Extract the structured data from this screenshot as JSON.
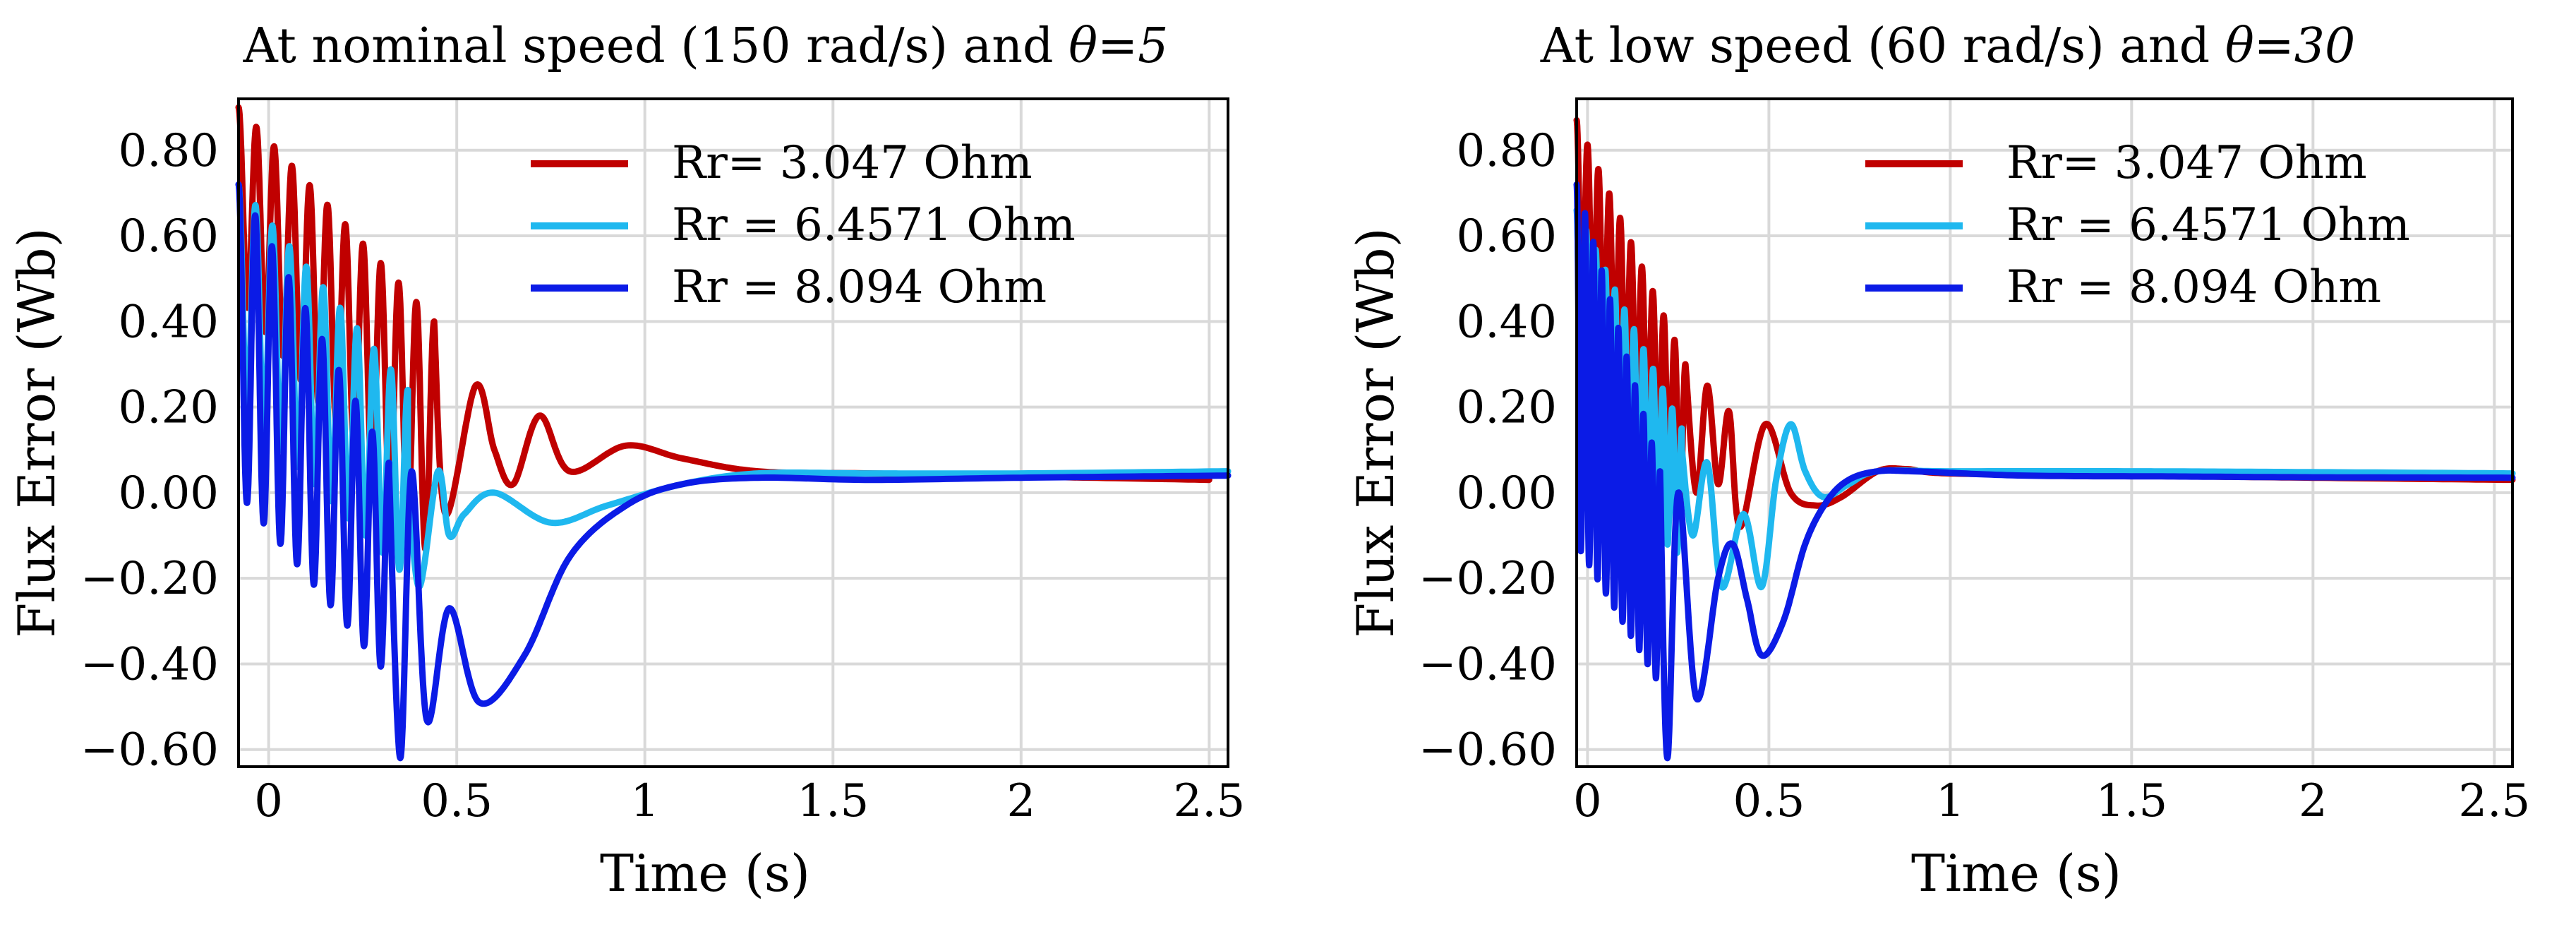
{
  "chart_data": [
    {
      "type": "line",
      "title": "At nominal speed (150 rad/s) and θ=5",
      "title_prefix": "At nominal speed (150 rad/s) and ",
      "title_theta": "θ=5",
      "xlabel": "Time (s)",
      "ylabel": "Flux Error (Wb)",
      "xlim": [
        -0.08,
        2.55
      ],
      "ylim": [
        -0.64,
        0.92
      ],
      "xticks": [
        0,
        0.5,
        1,
        1.5,
        2,
        2.5
      ],
      "xtick_labels": [
        "0",
        "0.5",
        "1",
        "1.5",
        "2",
        "2.5"
      ],
      "yticks": [
        0.8,
        0.6,
        0.4,
        0.2,
        0.0,
        -0.2,
        -0.4,
        -0.6
      ],
      "ytick_labels": [
        "0.80",
        "0.60",
        "0.40",
        "0.20",
        "0.00",
        "−0.20",
        "−0.40",
        "−0.60"
      ],
      "grid": true,
      "legend": "top-center",
      "series": [
        {
          "name": "Rr= 3.047  Ohm",
          "color": "#c00000",
          "osc": {
            "t0": -0.08,
            "t1": 0.44,
            "cycles": 11,
            "c0": 0.68,
            "c1": 0.12,
            "a0": 0.22,
            "a1": 0.28
          },
          "tail": [
            [
              0.44,
              0.4
            ],
            [
              0.47,
              -0.05
            ],
            [
              0.55,
              0.25
            ],
            [
              0.6,
              0.1
            ],
            [
              0.65,
              0.02
            ],
            [
              0.72,
              0.18
            ],
            [
              0.8,
              0.05
            ],
            [
              0.95,
              0.11
            ],
            [
              1.1,
              0.08
            ],
            [
              1.3,
              0.05
            ],
            [
              1.6,
              0.045
            ],
            [
              2.0,
              0.038
            ],
            [
              2.5,
              0.03
            ]
          ]
        },
        {
          "name": "Rr = 6.4571 Ohm",
          "color": "#1fb8ef",
          "osc": {
            "t0": -0.08,
            "t1": 0.37,
            "cycles": 10,
            "c0": 0.46,
            "c1": 0.02,
            "a0": 0.26,
            "a1": 0.22
          },
          "tail": [
            [
              0.37,
              0.05
            ],
            [
              0.4,
              -0.22
            ],
            [
              0.45,
              0.05
            ],
            [
              0.48,
              -0.1
            ],
            [
              0.52,
              -0.05
            ],
            [
              0.6,
              0.0
            ],
            [
              0.75,
              -0.07
            ],
            [
              0.9,
              -0.03
            ],
            [
              1.1,
              0.02
            ],
            [
              1.3,
              0.045
            ],
            [
              1.6,
              0.045
            ],
            [
              2.0,
              0.045
            ],
            [
              2.55,
              0.05
            ]
          ]
        },
        {
          "name": "Rr = 8.094  Ohm",
          "color": "#0b1be6",
          "osc": {
            "t0": -0.08,
            "t1": 0.32,
            "cycles": 9,
            "c0": 0.36,
            "c1": -0.18,
            "a0": 0.36,
            "a1": 0.25
          },
          "tail": [
            [
              0.32,
              0.05
            ],
            [
              0.35,
              -0.62
            ],
            [
              0.38,
              0.05
            ],
            [
              0.42,
              -0.53
            ],
            [
              0.48,
              -0.27
            ],
            [
              0.56,
              -0.49
            ],
            [
              0.68,
              -0.38
            ],
            [
              0.8,
              -0.15
            ],
            [
              0.95,
              -0.03
            ],
            [
              1.1,
              0.02
            ],
            [
              1.3,
              0.035
            ],
            [
              1.6,
              0.03
            ],
            [
              2.0,
              0.035
            ],
            [
              2.55,
              0.04
            ]
          ]
        }
      ]
    },
    {
      "type": "line",
      "title": "At low speed (60 rad/s) and θ=30",
      "title_prefix": "At low speed (60 rad/s) and ",
      "title_theta": "θ=30",
      "xlabel": "Time (s)",
      "ylabel": "Flux Error (Wb)",
      "xlim": [
        -0.03,
        2.55
      ],
      "ylim": [
        -0.64,
        0.92
      ],
      "xticks": [
        0,
        0.5,
        1,
        1.5,
        2,
        2.5
      ],
      "xtick_labels": [
        "0",
        "0.5",
        "1",
        "1.5",
        "2",
        "2.5"
      ],
      "yticks": [
        0.8,
        0.6,
        0.4,
        0.2,
        0.0,
        -0.2,
        -0.4,
        -0.6
      ],
      "ytick_labels": [
        "0.80",
        "0.60",
        "0.40",
        "0.20",
        "0.00",
        "−0.20",
        "−0.40",
        "−0.60"
      ],
      "grid": true,
      "legend": "top-center",
      "series": [
        {
          "name": "Rr= 3.047  Ohm",
          "color": "#c00000",
          "osc": {
            "t0": -0.03,
            "t1": 0.27,
            "cycles": 10,
            "c0": 0.65,
            "c1": 0.12,
            "a0": 0.22,
            "a1": 0.18
          },
          "tail": [
            [
              0.27,
              0.3
            ],
            [
              0.3,
              0.0
            ],
            [
              0.33,
              0.25
            ],
            [
              0.36,
              0.02
            ],
            [
              0.39,
              0.19
            ],
            [
              0.42,
              -0.08
            ],
            [
              0.49,
              0.16
            ],
            [
              0.56,
              0.0
            ],
            [
              0.63,
              -0.03
            ],
            [
              0.7,
              -0.01
            ],
            [
              0.8,
              0.05
            ],
            [
              0.88,
              0.055
            ],
            [
              1.0,
              0.045
            ],
            [
              1.5,
              0.04
            ],
            [
              2.0,
              0.035
            ],
            [
              2.55,
              0.03
            ]
          ]
        },
        {
          "name": "Rr = 6.4571 Ohm",
          "color": "#1fb8ef",
          "osc": {
            "t0": -0.03,
            "t1": 0.26,
            "cycles": 11,
            "c0": 0.36,
            "c1": 0.0,
            "a0": 0.3,
            "a1": 0.15
          },
          "tail": [
            [
              0.26,
              0.1
            ],
            [
              0.29,
              -0.1
            ],
            [
              0.33,
              0.07
            ],
            [
              0.37,
              -0.22
            ],
            [
              0.43,
              -0.05
            ],
            [
              0.48,
              -0.22
            ],
            [
              0.52,
              0.03
            ],
            [
              0.56,
              0.16
            ],
            [
              0.6,
              0.05
            ],
            [
              0.65,
              -0.01
            ],
            [
              0.72,
              0.02
            ],
            [
              0.8,
              0.05
            ],
            [
              1.0,
              0.05
            ],
            [
              1.5,
              0.05
            ],
            [
              2.0,
              0.048
            ],
            [
              2.55,
              0.045
            ]
          ]
        },
        {
          "name": "Rr = 8.094  Ohm",
          "color": "#0b1be6",
          "osc": {
            "t0": -0.03,
            "t1": 0.2,
            "cycles": 10,
            "c0": 0.3,
            "c1": -0.2,
            "a0": 0.42,
            "a1": 0.25
          },
          "tail": [
            [
              0.2,
              0.05
            ],
            [
              0.22,
              -0.62
            ],
            [
              0.25,
              0.0
            ],
            [
              0.3,
              -0.48
            ],
            [
              0.36,
              -0.2
            ],
            [
              0.4,
              -0.12
            ],
            [
              0.44,
              -0.25
            ],
            [
              0.48,
              -0.38
            ],
            [
              0.54,
              -0.3
            ],
            [
              0.6,
              -0.12
            ],
            [
              0.66,
              -0.02
            ],
            [
              0.72,
              0.03
            ],
            [
              0.8,
              0.05
            ],
            [
              0.9,
              0.05
            ],
            [
              1.2,
              0.04
            ],
            [
              1.6,
              0.038
            ],
            [
              2.0,
              0.036
            ],
            [
              2.55,
              0.035
            ]
          ]
        }
      ]
    }
  ]
}
